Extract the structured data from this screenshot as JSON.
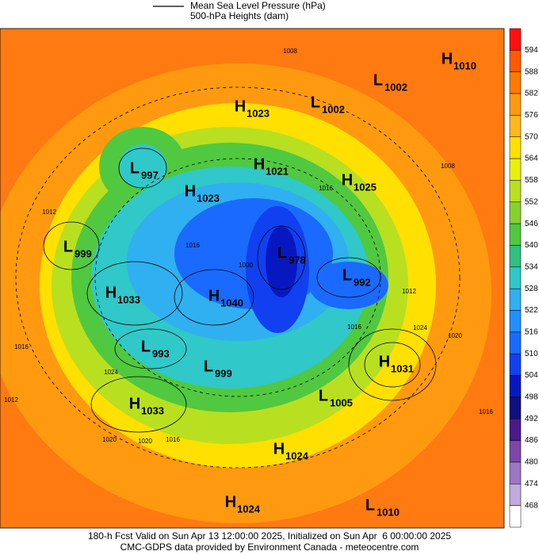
{
  "header": {
    "legend": [
      "Mean Sea Level Pressure (hPa)",
      "500-hPa Heights (dam)"
    ]
  },
  "colorbar": {
    "labels": [
      594,
      588,
      582,
      576,
      570,
      564,
      558,
      552,
      546,
      540,
      534,
      528,
      522,
      516,
      510,
      504,
      498,
      492,
      486,
      480,
      474,
      468
    ],
    "colors": [
      "#ff1010",
      "#ff5a00",
      "#ff7a00",
      "#ff9a10",
      "#ffb820",
      "#ffe000",
      "#e8f010",
      "#b8e020",
      "#88d030",
      "#50c840",
      "#30c080",
      "#30c8c8",
      "#30b0f0",
      "#2090ff",
      "#1a6aff",
      "#1040f0",
      "#0818c0",
      "#101080",
      "#4b1a8a",
      "#7a48a8",
      "#9a78c4",
      "#c0aade",
      "#ffffff"
    ]
  },
  "centers": [
    {
      "letter": "H",
      "value": 1010
    },
    {
      "letter": "L",
      "value": 1002
    },
    {
      "letter": "H",
      "value": 1023
    },
    {
      "letter": "L",
      "value": 1002
    },
    {
      "letter": "L",
      "value": 997
    },
    {
      "letter": "H",
      "value": 1021
    },
    {
      "letter": "H",
      "value": 1023
    },
    {
      "letter": "H",
      "value": 1025
    },
    {
      "letter": "L",
      "value": 999
    },
    {
      "letter": "L",
      "value": 978
    },
    {
      "letter": "L",
      "value": 992
    },
    {
      "letter": "H",
      "value": 1033
    },
    {
      "letter": "H",
      "value": 1040
    },
    {
      "letter": "L",
      "value": 993
    },
    {
      "letter": "L",
      "value": 999
    },
    {
      "letter": "H",
      "value": 1031
    },
    {
      "letter": "H",
      "value": 1033
    },
    {
      "letter": "L",
      "value": 1005
    },
    {
      "letter": "H",
      "value": 1024
    },
    {
      "letter": "H",
      "value": 1024
    },
    {
      "letter": "L",
      "value": 1010
    }
  ],
  "contour_labels": [
    1008,
    1012,
    1016,
    1016,
    1012,
    1016,
    1024,
    1020,
    1016,
    1012,
    1024,
    1020,
    1020,
    1016,
    1016,
    1008,
    1000
  ],
  "footer": [
    "180-h Fcst Valid on Sun Apr 13 12:00:00 2025, Initialized on Sun Apr  6 00:00:00 2025",
    "CMC-GDPS data provided by Environment Canada - meteocentre.com"
  ]
}
